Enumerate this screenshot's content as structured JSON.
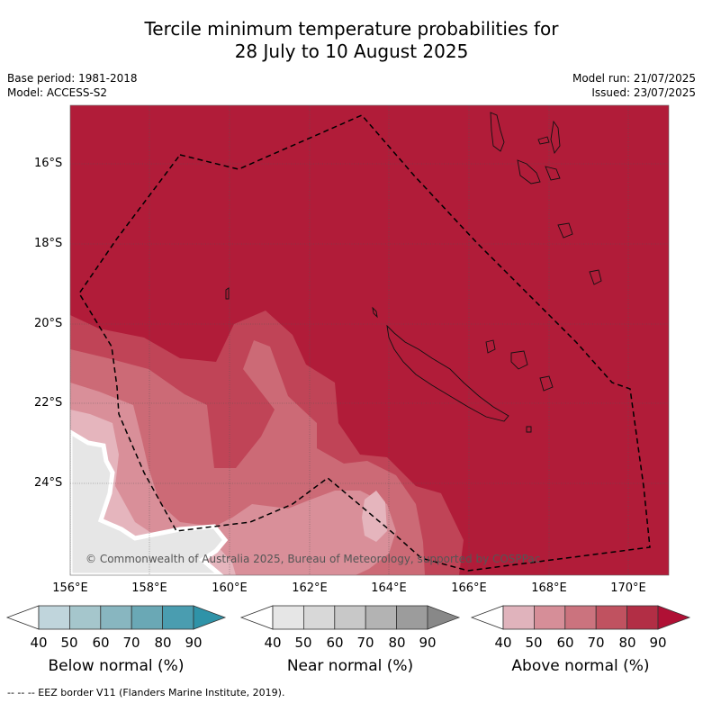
{
  "title": {
    "line1": "Tercile minimum temperature probabilities for",
    "line2": "28 July to 10 August 2025"
  },
  "meta": {
    "base_period": "Base period: 1981-2018",
    "model": "Model: ACCESS-S2",
    "model_run": "Model run: 21/07/2025",
    "issued": "Issued: 23/07/2025"
  },
  "map": {
    "lat_labels": [
      "16°S",
      "18°S",
      "20°S",
      "22°S",
      "24°S"
    ],
    "lon_labels": [
      "156°E",
      "158°E",
      "160°E",
      "162°E",
      "164°E",
      "166°E",
      "168°E",
      "170°E"
    ],
    "copyright": "© Commonwealth of Australia 2025, Bureau of Meteorology, supported by COSPPac",
    "base_color": "#b11c39"
  },
  "legends": [
    {
      "title": "Below normal (%)",
      "ticks": [
        "40",
        "50",
        "60",
        "70",
        "80",
        "90"
      ],
      "colors": [
        "#ffffff",
        "#c0d5dc",
        "#a5c6cc",
        "#88b6c0",
        "#6aa8b5",
        "#4a9db0",
        "#2f93a8"
      ]
    },
    {
      "title": "Near normal (%)",
      "ticks": [
        "40",
        "50",
        "60",
        "70",
        "80",
        "90"
      ],
      "colors": [
        "#ffffff",
        "#e6e6e6",
        "#d8d8d8",
        "#c8c8c8",
        "#b3b3b3",
        "#9c9c9c",
        "#888888"
      ]
    },
    {
      "title": "Above normal (%)",
      "ticks": [
        "40",
        "50",
        "60",
        "70",
        "80",
        "90"
      ],
      "colors": [
        "#ffffff",
        "#e0b3bc",
        "#d68e98",
        "#cb737e",
        "#c05260",
        "#b22e45",
        "#b01035"
      ]
    }
  ],
  "footer": "--  --  -- EEZ border V11 (Flanders Marine Institute, 2019)."
}
